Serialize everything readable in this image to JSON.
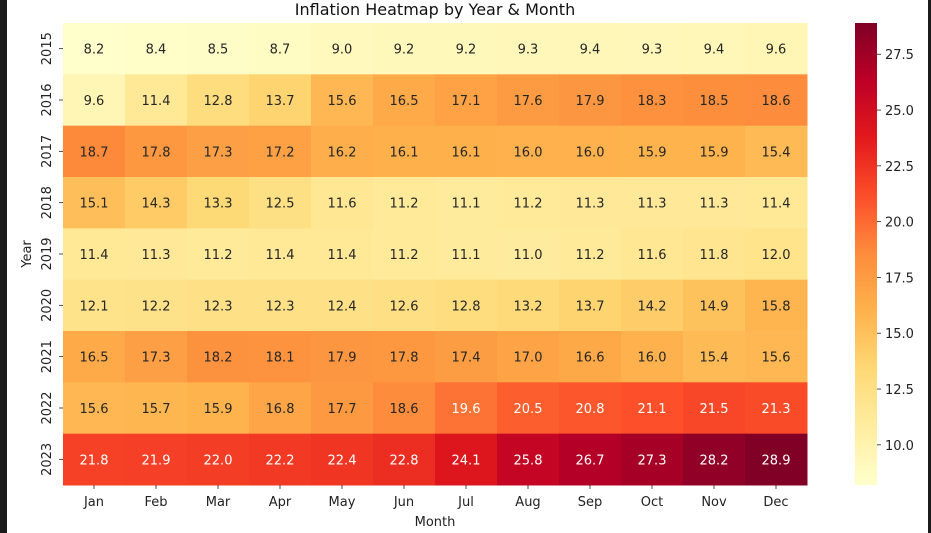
{
  "chart_data": {
    "type": "heatmap",
    "title": "Inflation Heatmap by Year & Month",
    "xlabel": "Month",
    "ylabel": "Year",
    "x": [
      "Jan",
      "Feb",
      "Mar",
      "Apr",
      "May",
      "Jun",
      "Jul",
      "Aug",
      "Sep",
      "Oct",
      "Nov",
      "Dec"
    ],
    "y": [
      "2015",
      "2016",
      "2017",
      "2018",
      "2019",
      "2020",
      "2021",
      "2022",
      "2023"
    ],
    "values": [
      [
        8.2,
        8.4,
        8.5,
        8.7,
        9.0,
        9.2,
        9.2,
        9.3,
        9.4,
        9.3,
        9.4,
        9.6
      ],
      [
        9.6,
        11.4,
        12.8,
        13.7,
        15.6,
        16.5,
        17.1,
        17.6,
        17.9,
        18.3,
        18.5,
        18.6
      ],
      [
        18.7,
        17.8,
        17.3,
        17.2,
        16.2,
        16.1,
        16.1,
        16.0,
        16.0,
        15.9,
        15.9,
        15.4
      ],
      [
        15.1,
        14.3,
        13.3,
        12.5,
        11.6,
        11.2,
        11.1,
        11.2,
        11.3,
        11.3,
        11.3,
        11.4
      ],
      [
        11.4,
        11.3,
        11.2,
        11.4,
        11.4,
        11.2,
        11.1,
        11.0,
        11.2,
        11.6,
        11.8,
        12.0
      ],
      [
        12.1,
        12.2,
        12.3,
        12.3,
        12.4,
        12.6,
        12.8,
        13.2,
        13.7,
        14.2,
        14.9,
        15.8
      ],
      [
        16.5,
        17.3,
        18.2,
        18.1,
        17.9,
        17.8,
        17.4,
        17.0,
        16.6,
        16.0,
        15.4,
        15.6
      ],
      [
        15.6,
        15.7,
        15.9,
        16.8,
        17.7,
        18.6,
        19.6,
        20.5,
        20.8,
        21.1,
        21.5,
        21.3
      ],
      [
        21.8,
        21.9,
        22.0,
        22.2,
        22.4,
        22.8,
        24.1,
        25.8,
        26.7,
        27.3,
        28.2,
        28.9
      ]
    ],
    "colormap": "YlOrRd",
    "vmin": 8.2,
    "vmax": 28.9,
    "colorbar_ticks": [
      "10.0",
      "12.5",
      "15.0",
      "17.5",
      "20.0",
      "22.5",
      "25.0",
      "27.5"
    ],
    "annotate": true
  }
}
